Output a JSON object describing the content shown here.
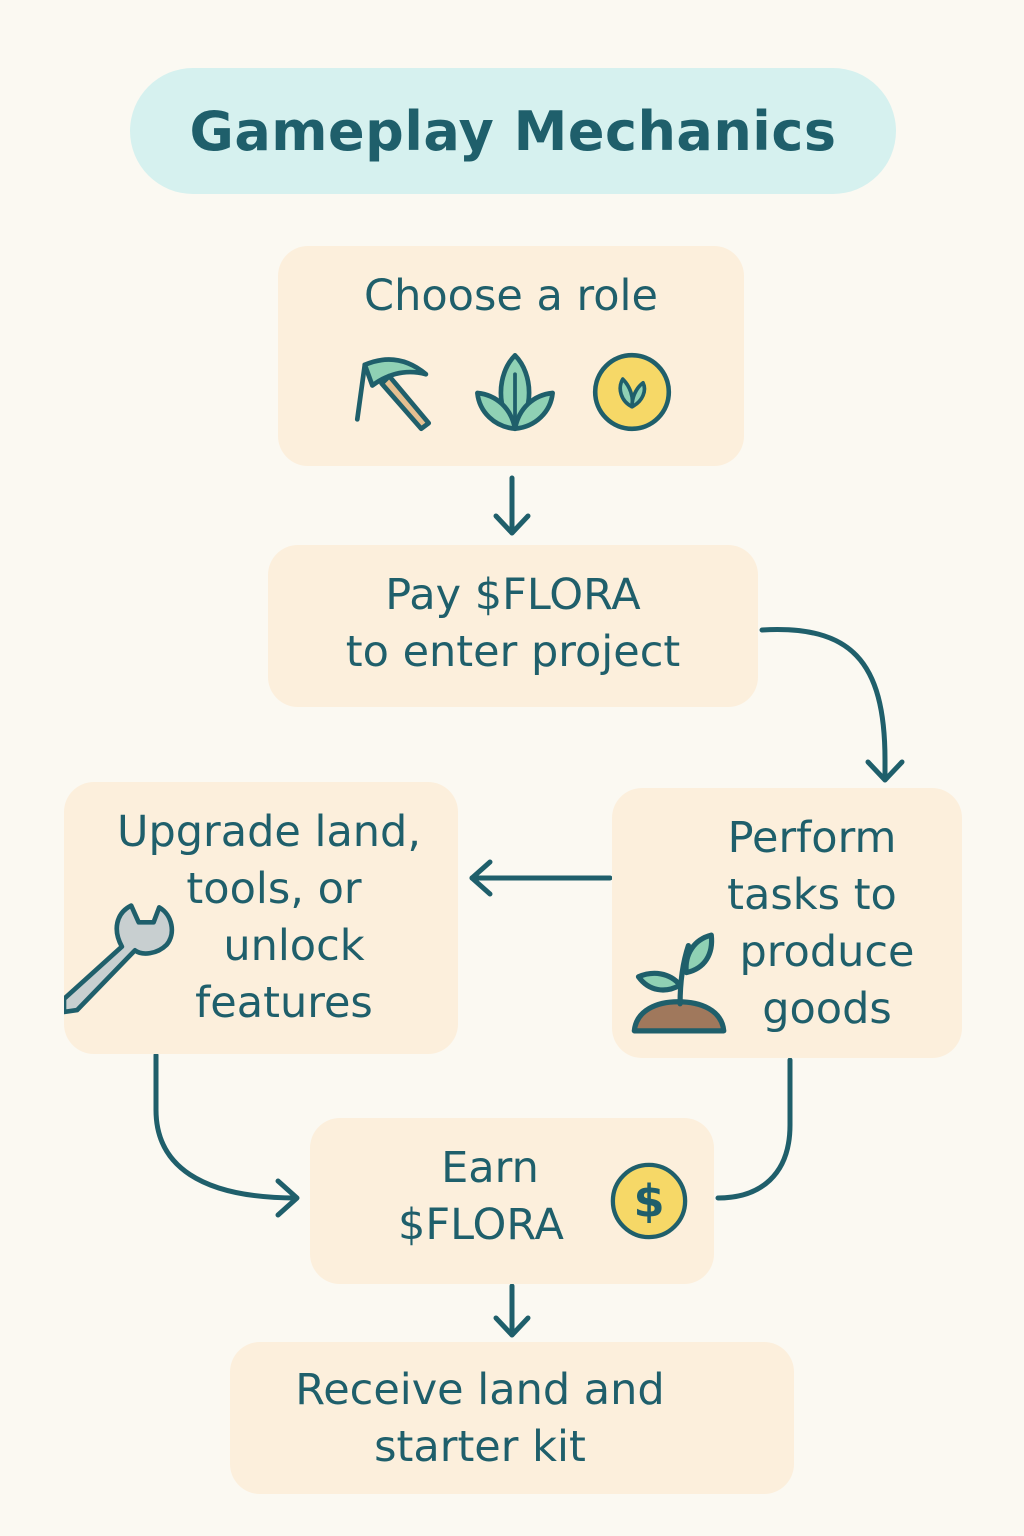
{
  "title": "Gameplay Mechanics",
  "steps": {
    "choose_role": {
      "line1": "Choose a role",
      "icons": [
        "pickaxe-icon",
        "leaf-icon",
        "coin-leaf-icon"
      ]
    },
    "pay": {
      "line1": "Pay $FLORA",
      "line2": "to enter project"
    },
    "perform": {
      "line1": "Perform",
      "line2": "tasks to",
      "line3": "produce",
      "line4": "goods",
      "icon": "sprout-icon"
    },
    "upgrade": {
      "line1": "Upgrade land,",
      "line2": "tools, or",
      "line3": "unlock",
      "line4": "features",
      "icon": "wrench-icon"
    },
    "earn": {
      "line1": "Earn",
      "line2": "$FLORA",
      "icon": "dollar-coin-icon"
    },
    "receive": {
      "line1": "Receive land and",
      "line2": "starter kit"
    }
  },
  "colors": {
    "background": "#fbf9f2",
    "title_pill": "#d6f1ef",
    "box": "#fcefdc",
    "text": "#1f5f6b",
    "arrow": "#1f5f6b",
    "leaf": "#8fd1b4",
    "coin": "#f6d867"
  }
}
